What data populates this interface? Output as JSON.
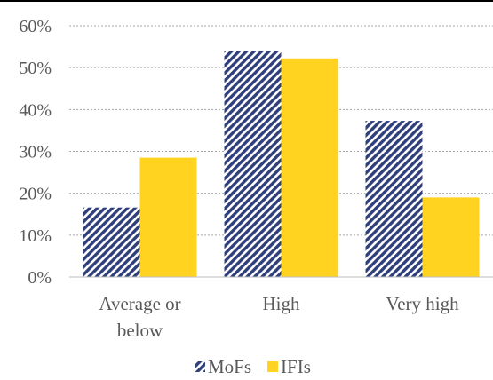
{
  "chart_data": {
    "type": "bar",
    "categories": [
      [
        "Average or",
        "below"
      ],
      [
        "High"
      ],
      [
        "Very high"
      ]
    ],
    "series": [
      {
        "name": "MoFs",
        "values": [
          0.166,
          0.54,
          0.373
        ],
        "pattern": "diagonal-hatch",
        "color": "#2f3f7a"
      },
      {
        "name": "IFIs",
        "values": [
          0.285,
          0.522,
          0.19
        ],
        "color": "#ffd320"
      }
    ],
    "ylim": [
      0,
      0.6
    ],
    "yticks": [
      0,
      0.1,
      0.2,
      0.3,
      0.4,
      0.5,
      0.6
    ],
    "ytick_labels": [
      "0%",
      "10%",
      "20%",
      "30%",
      "40%",
      "50%",
      "60%"
    ],
    "grid": true,
    "legend_position": "bottom",
    "title": "",
    "xlabel": "",
    "ylabel": ""
  }
}
